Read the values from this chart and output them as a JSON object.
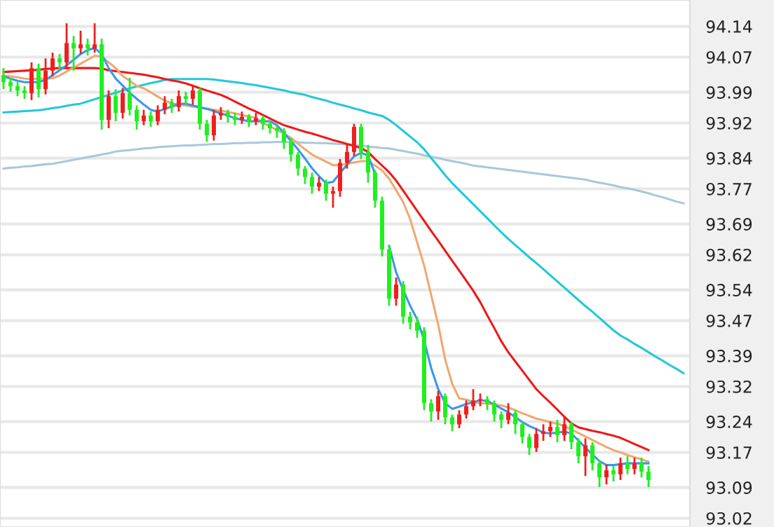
{
  "chart_data": {
    "type": "candlestick",
    "categories": [
      null,
      null,
      null,
      null,
      null,
      null,
      null,
      null,
      null,
      null,
      null,
      null,
      null,
      null,
      null,
      null,
      null,
      null,
      null,
      null,
      null,
      null,
      null,
      null,
      null,
      null,
      null,
      null,
      null,
      null,
      null,
      null,
      null,
      null,
      null,
      null,
      null,
      null,
      null,
      null,
      null,
      null,
      null,
      null,
      null,
      null,
      null,
      null,
      null,
      null,
      null,
      null,
      null,
      null,
      null,
      null,
      null,
      null,
      null,
      null,
      null,
      null,
      null,
      null,
      null,
      null,
      null,
      null,
      null,
      null,
      null,
      null,
      null,
      null,
      null,
      null,
      null,
      null,
      null,
      null,
      null,
      null,
      null,
      null,
      null,
      null,
      null,
      null,
      null,
      null,
      null,
      null,
      null,
      null,
      null,
      null,
      null,
      null
    ],
    "ohlc": [
      [
        94.029,
        94.045,
        93.997,
        94.013
      ],
      [
        94.013,
        94.023,
        93.991,
        94.004
      ],
      [
        94.004,
        94.013,
        93.981,
        93.994
      ],
      [
        93.994,
        94.004,
        93.975,
        93.988
      ],
      [
        93.988,
        94.058,
        93.972,
        94.045
      ],
      [
        94.045,
        94.055,
        93.978,
        93.997
      ],
      [
        93.997,
        94.067,
        93.985,
        94.039
      ],
      [
        94.039,
        94.08,
        94.026,
        94.067
      ],
      [
        94.067,
        94.077,
        94.042,
        94.058
      ],
      [
        94.058,
        94.147,
        94.042,
        94.102
      ],
      [
        94.102,
        94.118,
        94.039,
        94.09
      ],
      [
        94.09,
        94.13,
        94.077,
        94.099
      ],
      [
        94.099,
        94.112,
        94.074,
        94.09
      ],
      [
        94.09,
        94.147,
        94.08,
        94.099
      ],
      [
        94.099,
        94.112,
        93.905,
        93.927
      ],
      [
        93.927,
        93.994,
        93.908,
        93.981
      ],
      [
        93.981,
        93.997,
        93.924,
        93.943
      ],
      [
        93.943,
        94.0,
        93.93,
        93.988
      ],
      [
        93.988,
        94.023,
        93.937,
        93.95
      ],
      [
        93.95,
        93.96,
        93.905,
        93.924
      ],
      [
        93.924,
        93.95,
        93.915,
        93.937
      ],
      [
        93.937,
        93.946,
        93.911,
        93.924
      ],
      [
        93.924,
        93.96,
        93.915,
        93.95
      ],
      [
        93.95,
        93.981,
        93.94,
        93.966
      ],
      [
        93.966,
        93.975,
        93.943,
        93.956
      ],
      [
        93.956,
        93.994,
        93.946,
        93.981
      ],
      [
        93.981,
        93.991,
        93.962,
        93.975
      ],
      [
        93.975,
        94.004,
        93.962,
        93.994
      ],
      [
        93.994,
        94.0,
        93.905,
        93.918
      ],
      [
        93.918,
        93.927,
        93.877,
        93.892
      ],
      [
        93.892,
        93.95,
        93.88,
        93.937
      ],
      [
        93.937,
        93.956,
        93.927,
        93.943
      ],
      [
        93.943,
        93.95,
        93.921,
        93.934
      ],
      [
        93.934,
        93.943,
        93.915,
        93.927
      ],
      [
        93.927,
        93.946,
        93.918,
        93.934
      ],
      [
        93.934,
        93.94,
        93.911,
        93.924
      ],
      [
        93.924,
        93.943,
        93.915,
        93.931
      ],
      [
        93.931,
        93.937,
        93.905,
        93.918
      ],
      [
        93.918,
        93.924,
        93.896,
        93.908
      ],
      [
        93.908,
        93.915,
        93.886,
        93.902
      ],
      [
        93.902,
        93.908,
        93.861,
        93.877
      ],
      [
        93.877,
        93.886,
        93.832,
        93.848
      ],
      [
        93.848,
        93.854,
        93.8,
        93.816
      ],
      [
        93.816,
        93.822,
        93.781,
        93.797
      ],
      [
        93.797,
        93.807,
        93.759,
        93.775
      ],
      [
        93.775,
        93.797,
        93.765,
        93.784
      ],
      [
        93.784,
        93.791,
        93.743,
        93.759
      ],
      [
        93.759,
        93.775,
        93.727,
        93.765
      ],
      [
        93.765,
        93.838,
        93.752,
        93.829
      ],
      [
        93.829,
        93.87,
        93.816,
        93.854
      ],
      [
        93.854,
        93.918,
        93.845,
        93.911
      ],
      [
        93.911,
        93.918,
        93.838,
        93.854
      ],
      [
        93.854,
        93.87,
        93.784,
        93.807
      ],
      [
        93.807,
        93.813,
        93.727,
        93.743
      ],
      [
        93.743,
        93.752,
        93.616,
        93.632
      ],
      [
        93.632,
        93.64,
        93.504,
        93.52
      ],
      [
        93.52,
        93.568,
        93.504,
        93.552
      ],
      [
        93.552,
        93.56,
        93.463,
        93.479
      ],
      [
        93.479,
        93.49,
        93.45,
        93.466
      ],
      [
        93.466,
        93.479,
        93.431,
        93.447
      ],
      [
        93.447,
        93.455,
        93.266,
        93.282
      ],
      [
        93.282,
        93.291,
        93.24,
        93.263
      ],
      [
        93.263,
        93.31,
        93.244,
        93.298
      ],
      [
        93.298,
        93.304,
        93.234,
        93.25
      ],
      [
        93.25,
        93.256,
        93.218,
        93.234
      ],
      [
        93.234,
        93.266,
        93.225,
        93.256
      ],
      [
        93.256,
        93.288,
        93.247,
        93.275
      ],
      [
        93.275,
        93.314,
        93.266,
        93.288
      ],
      [
        93.288,
        93.304,
        93.275,
        93.291
      ],
      [
        93.291,
        93.298,
        93.266,
        93.282
      ],
      [
        93.282,
        93.288,
        93.24,
        93.256
      ],
      [
        93.256,
        93.263,
        93.225,
        93.244
      ],
      [
        93.244,
        93.282,
        93.234,
        93.26
      ],
      [
        93.26,
        93.266,
        93.212,
        93.234
      ],
      [
        93.234,
        93.24,
        93.19,
        93.205
      ],
      [
        93.205,
        93.212,
        93.164,
        93.18
      ],
      [
        93.18,
        93.225,
        93.171,
        93.212
      ],
      [
        93.212,
        93.234,
        93.196,
        93.218
      ],
      [
        93.218,
        93.24,
        93.205,
        93.228
      ],
      [
        93.228,
        93.244,
        93.193,
        93.209
      ],
      [
        93.209,
        93.25,
        93.196,
        93.234
      ],
      [
        93.234,
        93.24,
        93.177,
        93.193
      ],
      [
        93.193,
        93.202,
        93.145,
        93.161
      ],
      [
        93.161,
        93.202,
        93.116,
        93.186
      ],
      [
        93.186,
        93.193,
        93.129,
        93.145
      ],
      [
        93.145,
        93.152,
        93.091,
        93.113
      ],
      [
        93.113,
        93.142,
        93.097,
        93.129
      ],
      [
        93.129,
        93.139,
        93.104,
        93.12
      ],
      [
        93.12,
        93.158,
        93.107,
        93.145
      ],
      [
        93.145,
        93.161,
        93.12,
        93.132
      ],
      [
        93.132,
        93.158,
        93.12,
        93.145
      ],
      [
        93.145,
        93.158,
        93.113,
        93.126
      ],
      [
        93.126,
        93.139,
        93.091,
        93.107
      ],
      null,
      null,
      null,
      null,
      null
    ],
    "colors": [
      "#1ff01f",
      "#1ff01f",
      "#1ff01f",
      "#1ff01f",
      "#f01f1f",
      "#1ff01f",
      "#f01f1f",
      "#f01f1f",
      "#1ff01f",
      "#f01f1f",
      "#1ff01f",
      "#f01f1f",
      "#1ff01f",
      "#f01f1f",
      "#1ff01f",
      "#f01f1f",
      "#1ff01f",
      "#f01f1f",
      "#1ff01f",
      "#1ff01f",
      "#f01f1f",
      "#1ff01f",
      "#f01f1f",
      "#f01f1f",
      "#1ff01f",
      "#f01f1f",
      "#1ff01f",
      "#f01f1f",
      "#1ff01f",
      "#1ff01f",
      "#f01f1f",
      "#f01f1f",
      "#1ff01f",
      "#1ff01f",
      "#f01f1f",
      "#1ff01f",
      "#f01f1f",
      "#1ff01f",
      "#1ff01f",
      "#1ff01f",
      "#1ff01f",
      "#1ff01f",
      "#1ff01f",
      "#1ff01f",
      "#1ff01f",
      "#f01f1f",
      "#1ff01f",
      "#f01f1f",
      "#f01f1f",
      "#f01f1f",
      "#f01f1f",
      "#1ff01f",
      "#1ff01f",
      "#1ff01f",
      "#1ff01f",
      "#1ff01f",
      "#f01f1f",
      "#1ff01f",
      "#1ff01f",
      "#1ff01f",
      "#1ff01f",
      "#1ff01f",
      "#f01f1f",
      "#1ff01f",
      "#1ff01f",
      "#f01f1f",
      "#f01f1f",
      "#f01f1f",
      "#f01f1f",
      "#1ff01f",
      "#1ff01f",
      "#1ff01f",
      "#f01f1f",
      "#1ff01f",
      "#1ff01f",
      "#1ff01f",
      "#f01f1f",
      "#f01f1f",
      "#f01f1f",
      "#1ff01f",
      "#f01f1f",
      "#1ff01f",
      "#1ff01f",
      "#f01f1f",
      "#1ff01f",
      "#1ff01f",
      "#f01f1f",
      "#1ff01f",
      "#f01f1f",
      "#1ff01f",
      "#f01f1f",
      "#1ff01f",
      "#1ff01f",
      null,
      null,
      null,
      null,
      null
    ],
    "series": [
      {
        "type": "line",
        "color": "#a8c8dc",
        "values": [
          93.816,
          93.818,
          93.819,
          93.821,
          93.822,
          93.824,
          93.826,
          93.827,
          93.83,
          93.833,
          93.836,
          93.839,
          93.842,
          93.845,
          93.848,
          93.851,
          93.855,
          93.857,
          93.858,
          93.86,
          93.862,
          93.863,
          93.865,
          93.866,
          93.867,
          93.868,
          93.869,
          93.869,
          93.87,
          93.871,
          93.872,
          93.872,
          93.873,
          93.874,
          93.874,
          93.875,
          93.875,
          93.876,
          93.876,
          93.877,
          93.877,
          93.876,
          93.876,
          93.875,
          93.875,
          93.874,
          93.874,
          93.873,
          93.872,
          93.871,
          93.869,
          93.868,
          93.866,
          93.865,
          93.863,
          93.862,
          93.859,
          93.856,
          93.853,
          93.85,
          93.846,
          93.843,
          93.84,
          93.836,
          93.833,
          93.83,
          93.827,
          93.823,
          93.821,
          93.819,
          93.817,
          93.815,
          93.813,
          93.811,
          93.809,
          93.807,
          93.805,
          93.803,
          93.801,
          93.799,
          93.797,
          93.795,
          93.793,
          93.791,
          93.787,
          93.784,
          93.781,
          93.778,
          93.774,
          93.771,
          93.768,
          93.764,
          93.76,
          93.755,
          93.751,
          93.746,
          93.741,
          93.737
        ]
      },
      {
        "type": "line",
        "color": "#22c8d8",
        "values": [
          93.944,
          93.945,
          93.946,
          93.947,
          93.948,
          93.949,
          93.951,
          93.954,
          93.956,
          93.959,
          93.962,
          93.964,
          93.969,
          93.974,
          93.979,
          93.984,
          93.989,
          93.994,
          93.999,
          94.003,
          94.007,
          94.011,
          94.014,
          94.018,
          94.02,
          94.02,
          94.02,
          94.02,
          94.02,
          94.02,
          94.019,
          94.017,
          94.015,
          94.013,
          94.011,
          94.008,
          94.006,
          94.003,
          94.0,
          93.997,
          93.994,
          93.99,
          93.987,
          93.984,
          93.979,
          93.975,
          93.971,
          93.966,
          93.962,
          93.958,
          93.953,
          93.949,
          93.944,
          93.94,
          93.936,
          93.927,
          93.915,
          93.902,
          93.889,
          93.876,
          93.86,
          93.84,
          93.821,
          93.801,
          93.783,
          93.767,
          93.751,
          93.735,
          93.719,
          93.703,
          93.687,
          93.671,
          93.656,
          93.642,
          93.628,
          93.614,
          93.601,
          93.587,
          93.573,
          93.559,
          93.545,
          93.531,
          93.517,
          93.503,
          93.49,
          93.476,
          93.462,
          93.448,
          93.436,
          93.427,
          93.417,
          93.408,
          93.398,
          93.388,
          93.379,
          93.369,
          93.36,
          93.35
        ]
      },
      {
        "type": "line",
        "color": "#f01818",
        "values": [
          94.036,
          94.037,
          94.038,
          94.039,
          94.04,
          94.041,
          94.043,
          94.044,
          94.045,
          94.045,
          94.045,
          94.045,
          94.045,
          94.045,
          94.044,
          94.04,
          94.038,
          94.036,
          94.034,
          94.032,
          94.03,
          94.027,
          94.024,
          94.02,
          94.017,
          94.014,
          94.01,
          94.005,
          93.999,
          93.994,
          93.989,
          93.984,
          93.977,
          93.969,
          93.961,
          93.953,
          93.946,
          93.938,
          93.93,
          93.922,
          93.915,
          93.91,
          93.905,
          93.9,
          93.896,
          93.891,
          93.886,
          93.881,
          93.877,
          93.872,
          93.868,
          93.863,
          93.854,
          93.838,
          93.823,
          93.808,
          93.789,
          93.766,
          93.743,
          93.72,
          93.697,
          93.674,
          93.652,
          93.629,
          93.606,
          93.584,
          93.561,
          93.538,
          93.512,
          93.482,
          93.453,
          93.423,
          93.398,
          93.377,
          93.356,
          93.335,
          93.314,
          93.298,
          93.283,
          93.267,
          93.251,
          93.236,
          93.227,
          93.223,
          93.219,
          93.216,
          93.212,
          93.208,
          93.203,
          93.196,
          93.189,
          93.182,
          93.175,
          null,
          null,
          null,
          null,
          null
        ]
      },
      {
        "type": "line",
        "color": "#f0a870",
        "values": [
          94.028,
          94.026,
          94.024,
          94.021,
          94.02,
          94.021,
          94.021,
          94.022,
          94.028,
          94.037,
          94.046,
          94.055,
          94.064,
          94.073,
          94.071,
          94.058,
          94.045,
          94.027,
          94.016,
          94.004,
          93.999,
          93.99,
          93.98,
          93.971,
          93.965,
          93.962,
          93.96,
          93.957,
          93.955,
          93.953,
          93.95,
          93.948,
          93.945,
          93.942,
          93.938,
          93.935,
          93.931,
          93.92,
          93.912,
          93.904,
          93.896,
          93.886,
          93.873,
          93.86,
          93.848,
          93.84,
          93.832,
          93.824,
          93.824,
          93.827,
          93.83,
          93.833,
          93.833,
          93.823,
          93.812,
          93.793,
          93.767,
          93.74,
          93.701,
          93.648,
          93.595,
          93.528,
          93.461,
          93.381,
          93.326,
          93.293,
          93.29,
          93.285,
          93.282,
          93.281,
          93.279,
          93.277,
          93.272,
          93.266,
          93.259,
          93.253,
          93.247,
          93.243,
          93.239,
          93.235,
          93.23,
          93.222,
          93.214,
          93.206,
          93.198,
          93.19,
          93.182,
          93.175,
          93.17,
          93.164,
          93.159,
          93.154,
          93.149,
          null,
          null,
          null,
          null,
          null
        ]
      },
      {
        "type": "line",
        "color": "#3a96f0",
        "values": [
          94.026,
          94.021,
          94.016,
          94.013,
          94.013,
          94.013,
          94.018,
          94.029,
          94.04,
          94.051,
          94.064,
          94.077,
          94.086,
          94.091,
          94.077,
          94.045,
          94.021,
          94.005,
          93.989,
          93.975,
          93.962,
          93.95,
          93.946,
          93.952,
          93.957,
          93.963,
          93.964,
          93.96,
          93.956,
          93.952,
          93.947,
          93.942,
          93.937,
          93.931,
          93.927,
          93.924,
          93.924,
          93.924,
          93.924,
          93.915,
          93.897,
          93.879,
          93.86,
          93.839,
          93.817,
          93.799,
          93.783,
          93.786,
          93.806,
          93.825,
          93.844,
          93.852,
          93.846,
          93.804,
          null,
          93.64,
          93.58,
          93.54,
          93.504,
          93.473,
          93.425,
          93.362,
          93.314,
          93.282,
          93.269,
          93.274,
          93.28,
          93.284,
          93.289,
          93.287,
          93.279,
          93.27,
          93.261,
          93.25,
          93.239,
          93.23,
          93.223,
          93.215,
          93.213,
          93.215,
          93.217,
          93.213,
          93.197,
          93.181,
          93.165,
          93.15,
          93.141,
          93.141,
          93.143,
          93.145,
          93.145,
          93.145,
          93.145,
          null,
          null,
          null,
          null,
          null
        ]
      }
    ],
    "ylim": [
      93.0,
      94.2
    ],
    "yticks": [
      93.02,
      93.09,
      93.17,
      93.24,
      93.32,
      93.39,
      93.47,
      93.54,
      93.62,
      93.69,
      93.77,
      93.84,
      93.92,
      93.99,
      94.07,
      94.14
    ],
    "grid": "y",
    "tick_labels": "y"
  }
}
